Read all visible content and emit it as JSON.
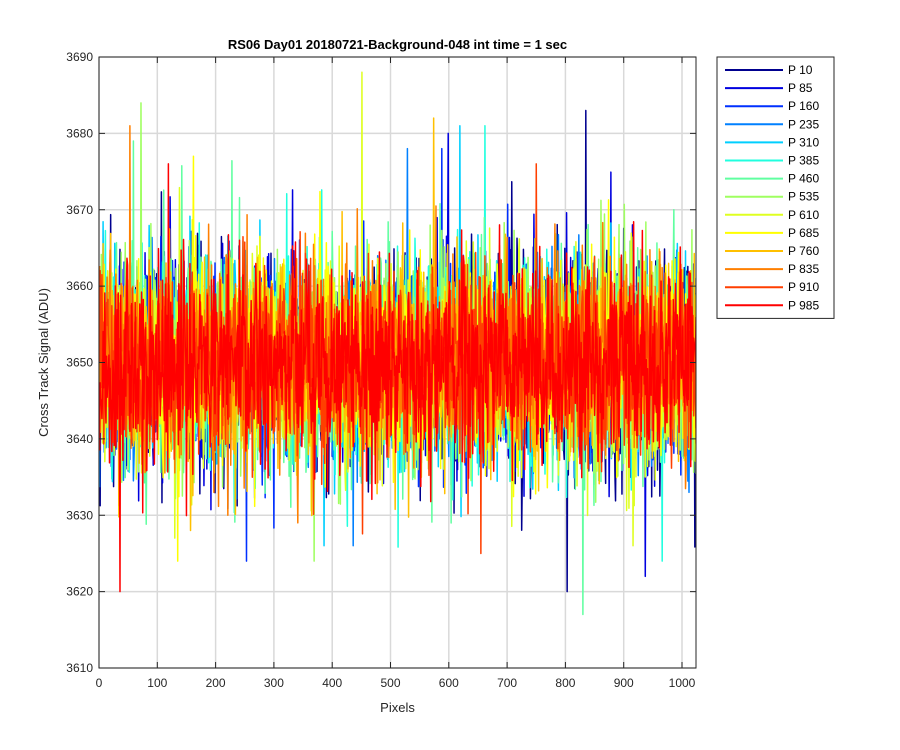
{
  "chart_data": {
    "type": "line",
    "title": "RS06 Day01 20180721-Background-048 int time = 1 sec",
    "xlabel": "Pixels",
    "ylabel": "Cross Track Signal (ADU)",
    "xlim": [
      0,
      1024
    ],
    "ylim": [
      3610,
      3690
    ],
    "x_ticks": [
      0,
      100,
      200,
      300,
      400,
      500,
      600,
      700,
      800,
      900,
      1000
    ],
    "y_ticks": [
      3610,
      3620,
      3630,
      3640,
      3650,
      3660,
      3670,
      3680,
      3690
    ],
    "grid": true,
    "legend_position": "outside-top-right",
    "series": [
      {
        "name": "P 10",
        "color": "#00008f",
        "mean": 3650,
        "min": 3620,
        "max": 3683
      },
      {
        "name": "P 85",
        "color": "#0000df",
        "mean": 3650,
        "min": 3622,
        "max": 3680
      },
      {
        "name": "P 160",
        "color": "#0030ff",
        "mean": 3650,
        "min": 3624,
        "max": 3678
      },
      {
        "name": "P 235",
        "color": "#0080ff",
        "mean": 3650,
        "min": 3626,
        "max": 3678
      },
      {
        "name": "P 310",
        "color": "#00cfff",
        "mean": 3650,
        "min": 3626,
        "max": 3681
      },
      {
        "name": "P 385",
        "color": "#20ffdf",
        "mean": 3650,
        "min": 3624,
        "max": 3681
      },
      {
        "name": "P 460",
        "color": "#60ffa0",
        "mean": 3650,
        "min": 3617,
        "max": 3679
      },
      {
        "name": "P 535",
        "color": "#9fff60",
        "mean": 3650,
        "min": 3624,
        "max": 3684
      },
      {
        "name": "P 610",
        "color": "#dfff20",
        "mean": 3650,
        "min": 3626,
        "max": 3688
      },
      {
        "name": "P 685",
        "color": "#ffff00",
        "mean": 3650,
        "min": 3624,
        "max": 3677
      },
      {
        "name": "P 760",
        "color": "#ffc000",
        "mean": 3650,
        "min": 3628,
        "max": 3682
      },
      {
        "name": "P 835",
        "color": "#ff7f00",
        "mean": 3650,
        "min": 3629,
        "max": 3681
      },
      {
        "name": "P 910",
        "color": "#ff3f00",
        "mean": 3650,
        "min": 3625,
        "max": 3676
      },
      {
        "name": "P 985",
        "color": "#ff0000",
        "mean": 3650,
        "min": 3620,
        "max": 3676
      }
    ]
  }
}
